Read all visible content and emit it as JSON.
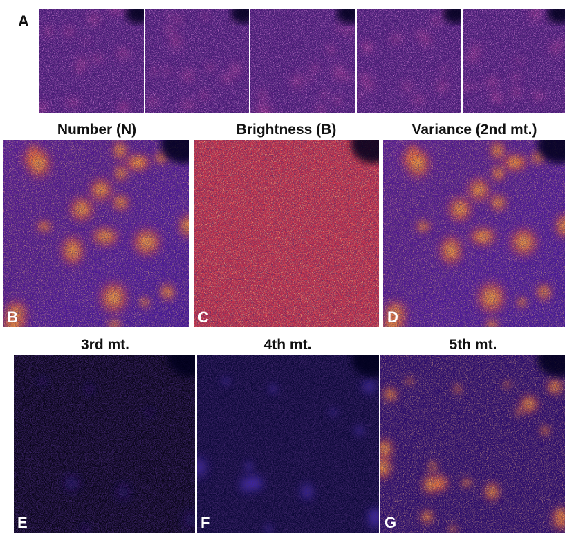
{
  "figure": {
    "row_a": {
      "label": "A"
    },
    "panels": [
      {
        "label": "B",
        "title": "Number (N)"
      },
      {
        "label": "C",
        "title": "Brightness (B)"
      },
      {
        "label": "D",
        "title": "Variance (2nd mt.)"
      },
      {
        "label": "E",
        "title": "3rd mt."
      },
      {
        "label": "F",
        "title": "4th mt."
      },
      {
        "label": "G",
        "title": "5th mt."
      }
    ]
  }
}
